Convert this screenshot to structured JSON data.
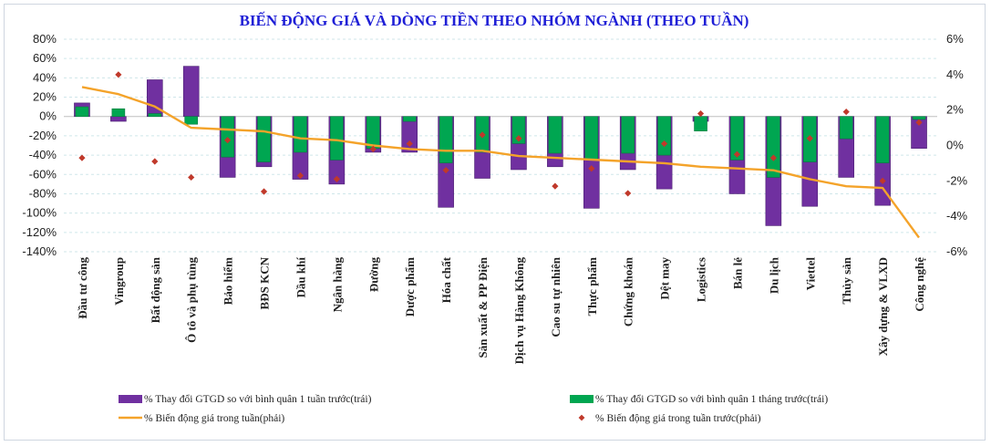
{
  "chart_data": {
    "type": "bar",
    "title": "BIẾN ĐỘNG GIÁ VÀ DÒNG TIỀN THEO NHÓM NGÀNH (THEO TUẦN)",
    "categories": [
      "Đầu tư công",
      "Vingroup",
      "Bất động sản",
      "Ô tô và phụ tùng",
      "Bảo hiểm",
      "BĐS KCN",
      "Dầu khí",
      "Ngân hàng",
      "Đường",
      "Dược phẩm",
      "Hóa chất",
      "Sản xuất & PP Điện",
      "Dịch vụ Hàng Không",
      "Cao su tự nhiên",
      "Thực phẩm",
      "Chứng khoán",
      "Dệt may",
      "Logistics",
      "Bán lẻ",
      "Du lịch",
      "Viettel",
      "Thủy sản",
      "Xây dựng & VLXD",
      "Công nghệ"
    ],
    "y_left": {
      "ticks": [
        "80%",
        "60%",
        "40%",
        "20%",
        "0%",
        "-20%",
        "-40%",
        "-60%",
        "-80%",
        "-100%",
        "-120%",
        "-140%"
      ],
      "ylim": [
        -140,
        80
      ]
    },
    "y_right": {
      "ticks": [
        "6%",
        "4%",
        "2%",
        "0%",
        "-2%",
        "-4%",
        "-6%"
      ],
      "ylim": [
        -6.5,
        6
      ]
    },
    "series": [
      {
        "name": "% Thay đổi GTGD so với bình quân 1 tuần trước(trái)",
        "type": "bar",
        "axis": "left",
        "color": "#7030a0",
        "values": [
          14,
          -5,
          38,
          52,
          -63,
          -52,
          -65,
          -70,
          -37,
          -37,
          -94,
          -64,
          -55,
          -52,
          -95,
          -55,
          -75,
          -5,
          -80,
          -113,
          -93,
          -63,
          -92,
          -33
        ]
      },
      {
        "name": "% Thay đổi GTGD so với bình quân 1 tháng trước(trái)",
        "type": "bar",
        "axis": "left",
        "color": "#00a651",
        "values": [
          10,
          8,
          3,
          -8,
          -42,
          -47,
          -37,
          -45,
          -33,
          -5,
          -48,
          -37,
          -28,
          -38,
          -45,
          -38,
          -40,
          -15,
          -45,
          -63,
          -47,
          -23,
          -48,
          -3
        ]
      },
      {
        "name": "% Biến động giá trong tuần(phải)",
        "type": "line",
        "axis": "right",
        "color": "#f4a32a",
        "values": [
          3.3,
          2.9,
          2.2,
          1.0,
          0.9,
          0.8,
          0.4,
          0.3,
          0.0,
          -0.2,
          -0.3,
          -0.3,
          -0.6,
          -0.7,
          -0.8,
          -0.9,
          -1.0,
          -1.2,
          -1.3,
          -1.4,
          -1.9,
          -2.3,
          -2.4,
          -5.2
        ]
      },
      {
        "name": "% Biến động giá trong tuần trước(phải)",
        "type": "scatter",
        "axis": "right",
        "color": "#c0392b",
        "values": [
          -0.7,
          4.0,
          -0.9,
          -1.8,
          0.3,
          -2.6,
          -1.7,
          -1.9,
          -0.2,
          0.1,
          -1.4,
          0.6,
          0.4,
          -2.3,
          -1.3,
          -2.7,
          0.1,
          1.8,
          -0.5,
          -0.7,
          0.4,
          1.9,
          -2.0,
          1.3
        ]
      }
    ],
    "legend_position": "bottom",
    "grid": true
  }
}
